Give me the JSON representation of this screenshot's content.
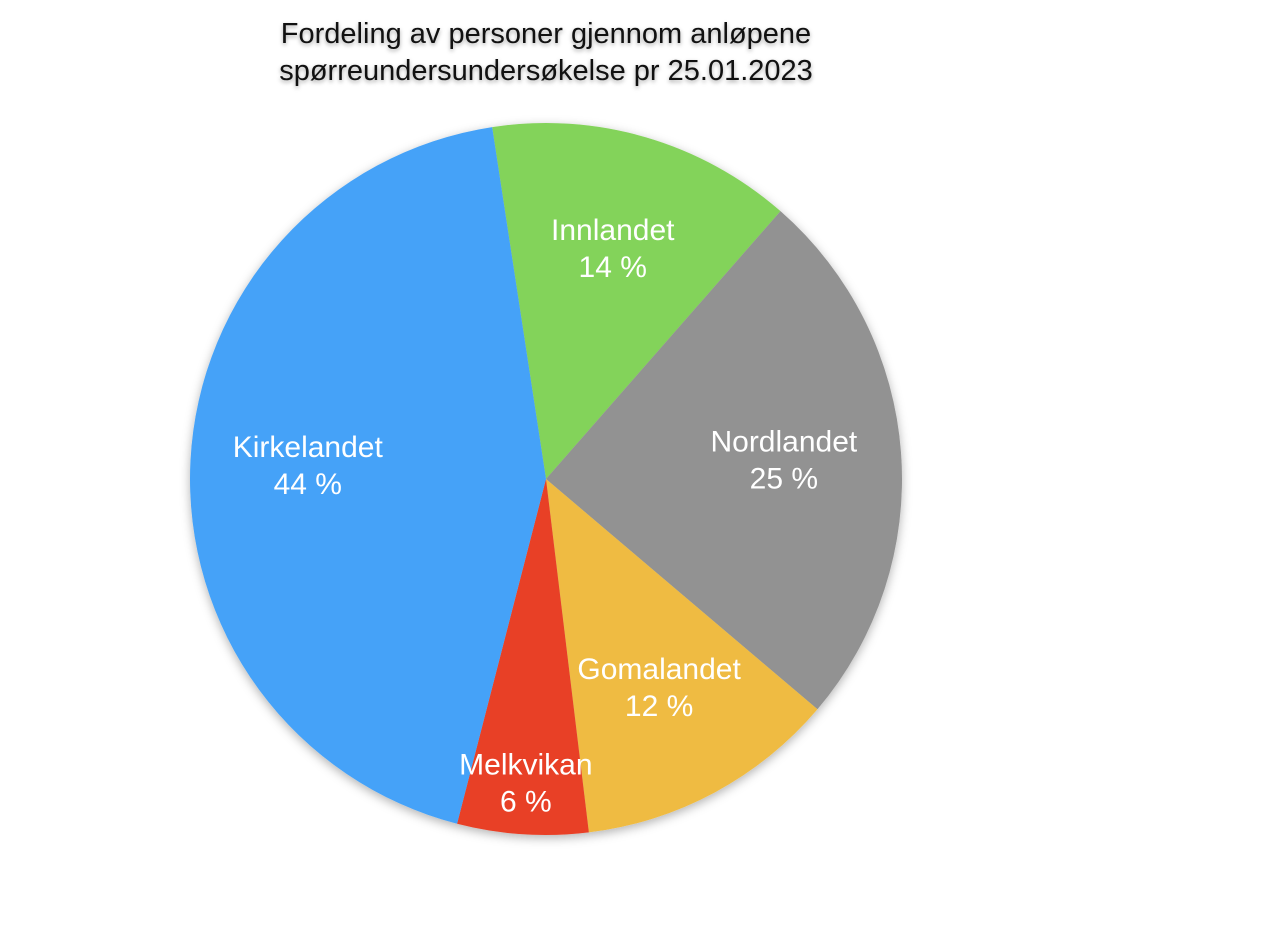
{
  "chart_data": {
    "type": "pie",
    "title": "Fordeling av personer gjennom anløpene spørreundersundersøkelse pr 25.01.2023",
    "categories": [
      "Innlandet",
      "Nordlandet",
      "Gomalandet",
      "Melkvikan",
      "Kirkelandet"
    ],
    "values": [
      14,
      25,
      12,
      6,
      44
    ],
    "value_labels": [
      "14 %",
      "25 %",
      "12 %",
      "6 %",
      "44 %"
    ],
    "colors": [
      "#83d35a",
      "#929292",
      "#efbb42",
      "#e84128",
      "#45a2f8"
    ]
  }
}
